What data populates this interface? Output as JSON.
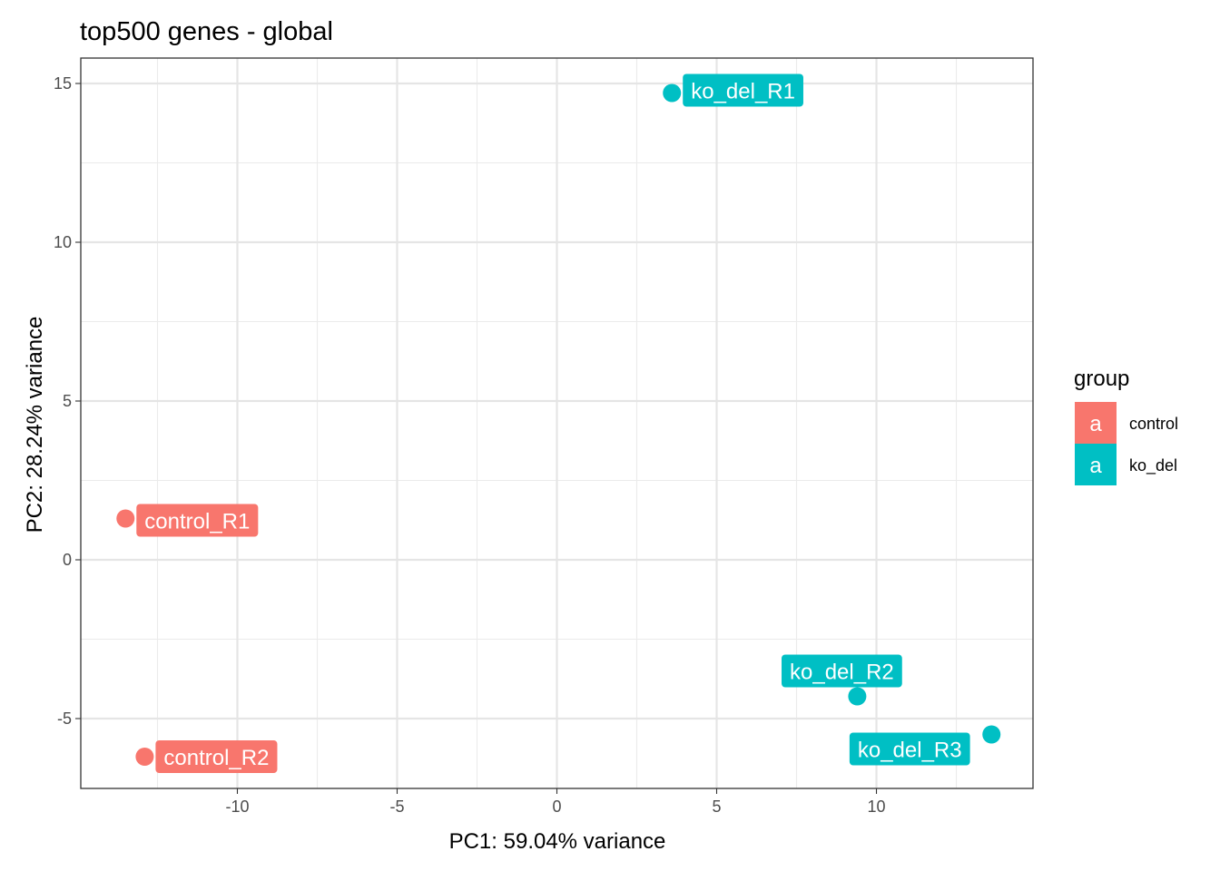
{
  "chart_data": {
    "type": "scatter",
    "title": "top500 genes - global",
    "xlabel": "PC1: 59.04% variance",
    "ylabel": "PC2: 28.24% variance",
    "xlim": [
      -14.9,
      14.9
    ],
    "ylim": [
      -7.2,
      15.8
    ],
    "x_ticks": [
      -10,
      -5,
      0,
      5,
      10
    ],
    "y_ticks": [
      -5,
      0,
      5,
      10,
      15
    ],
    "x_tick_labels": [
      "-10",
      "-5",
      "0",
      "5",
      "10"
    ],
    "y_tick_labels": [
      "-5",
      "0",
      "5",
      "10",
      "15"
    ],
    "grid": true,
    "legend": {
      "title": "group",
      "position": "right",
      "key_glyph": "a",
      "entries": [
        {
          "name": "control",
          "color": "#F8766D"
        },
        {
          "name": "ko_del",
          "color": "#00BFC4"
        }
      ]
    },
    "points": [
      {
        "label": "control_R1",
        "group": "control",
        "x": -13.5,
        "y": 1.3
      },
      {
        "label": "control_R2",
        "group": "control",
        "x": -12.9,
        "y": -6.2
      },
      {
        "label": "ko_del_R1",
        "group": "ko_del",
        "x": 3.6,
        "y": 14.7
      },
      {
        "label": "ko_del_R2",
        "group": "ko_del",
        "x": 9.4,
        "y": -4.3
      },
      {
        "label": "ko_del_R3",
        "group": "ko_del",
        "x": 13.6,
        "y": -5.5
      }
    ]
  }
}
